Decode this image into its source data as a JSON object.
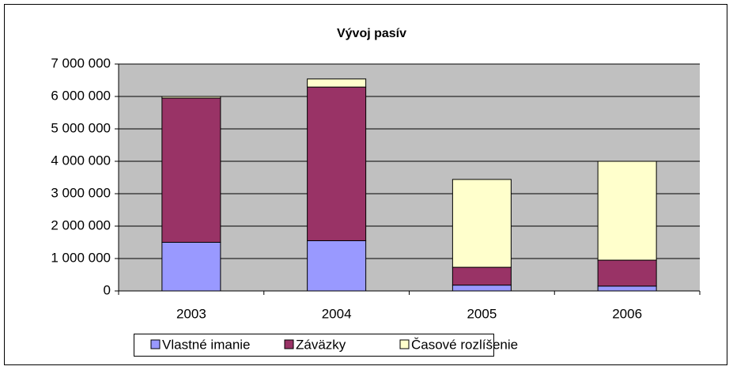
{
  "chart_data": {
    "type": "stacked_bar",
    "title": "Vývoj pasív",
    "categories": [
      "2003",
      "2004",
      "2005",
      "2006"
    ],
    "series": [
      {
        "name": "Vlastné imanie",
        "color": "#9999ff",
        "values": [
          1500000,
          1550000,
          180000,
          150000
        ]
      },
      {
        "name": "Záväzky",
        "color": "#993366",
        "values": [
          4450000,
          4740000,
          550000,
          800000
        ]
      },
      {
        "name": "Časové rozlíšenie",
        "color": "#ffffcc",
        "values": [
          50000,
          250000,
          2710000,
          3050000
        ]
      }
    ],
    "ylim": [
      0,
      7000000
    ],
    "yticks": [
      0,
      {
        "value": 1000000,
        "label": "1 000 000"
      },
      {
        "value": 2000000,
        "label": "2 000 000"
      },
      {
        "value": 3000000,
        "label": "3 000 000"
      },
      {
        "value": 4000000,
        "label": "4 000 000"
      },
      {
        "value": 5000000,
        "label": "5 000 000"
      },
      {
        "value": 6000000,
        "label": "6 000 000"
      },
      {
        "value": 7000000,
        "label": "7 000 000"
      }
    ],
    "grid": true,
    "legend": "bottom"
  }
}
